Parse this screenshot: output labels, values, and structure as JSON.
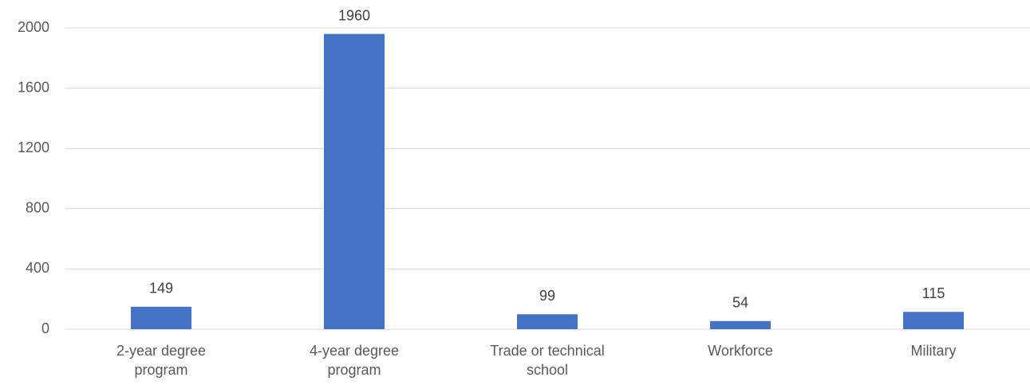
{
  "chart_data": {
    "type": "bar",
    "categories": [
      "2-year degree program",
      "4-year degree program",
      "Trade or technical school",
      "Workforce",
      "Military"
    ],
    "values": [
      149,
      1960,
      99,
      54,
      115
    ],
    "color": "#4472c4",
    "ylim": [
      0,
      2000
    ],
    "yticks": [
      0,
      400,
      800,
      1200,
      1600,
      2000
    ],
    "grid": true
  }
}
